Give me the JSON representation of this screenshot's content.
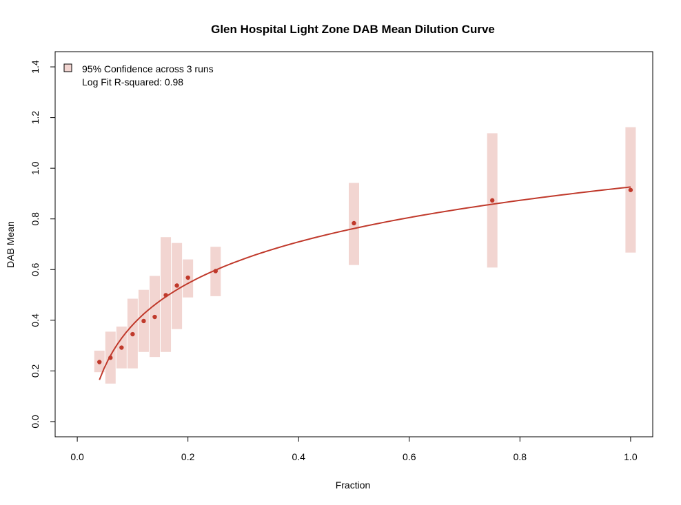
{
  "chart_data": {
    "type": "scatter",
    "title": "Glen Hospital Light Zone DAB Mean Dilution Curve",
    "xlabel": "Fraction",
    "ylabel": "DAB Mean",
    "xlim": [
      -0.04,
      1.04
    ],
    "ylim": [
      -0.06,
      1.46
    ],
    "x_ticks": [
      0.0,
      0.2,
      0.4,
      0.6,
      0.8,
      1.0
    ],
    "x_tick_labels": [
      "0.0",
      "0.2",
      "0.4",
      "0.6",
      "0.8",
      "1.0"
    ],
    "y_ticks": [
      0.0,
      0.2,
      0.4,
      0.6,
      0.8,
      1.0,
      1.2,
      1.4
    ],
    "y_tick_labels": [
      "0.0",
      "0.2",
      "0.4",
      "0.6",
      "0.8",
      "1.0",
      "1.2",
      "1.4"
    ],
    "points": [
      {
        "x": 0.04,
        "y": 0.235,
        "lo": 0.195,
        "hi": 0.28
      },
      {
        "x": 0.06,
        "y": 0.252,
        "lo": 0.15,
        "hi": 0.355
      },
      {
        "x": 0.08,
        "y": 0.292,
        "lo": 0.21,
        "hi": 0.375
      },
      {
        "x": 0.1,
        "y": 0.345,
        "lo": 0.21,
        "hi": 0.485
      },
      {
        "x": 0.12,
        "y": 0.397,
        "lo": 0.275,
        "hi": 0.52
      },
      {
        "x": 0.14,
        "y": 0.413,
        "lo": 0.255,
        "hi": 0.575
      },
      {
        "x": 0.16,
        "y": 0.499,
        "lo": 0.275,
        "hi": 0.728
      },
      {
        "x": 0.18,
        "y": 0.537,
        "lo": 0.365,
        "hi": 0.705
      },
      {
        "x": 0.2,
        "y": 0.568,
        "lo": 0.49,
        "hi": 0.64
      },
      {
        "x": 0.25,
        "y": 0.594,
        "lo": 0.495,
        "hi": 0.69
      },
      {
        "x": 0.5,
        "y": 0.783,
        "lo": 0.618,
        "hi": 0.942
      },
      {
        "x": 0.75,
        "y": 0.873,
        "lo": 0.608,
        "hi": 1.138
      },
      {
        "x": 1.0,
        "y": 0.914,
        "lo": 0.667,
        "hi": 1.162
      }
    ],
    "fit": {
      "type": "log",
      "a": 0.926,
      "b": 0.2365,
      "x_from": 0.04,
      "x_to": 1.0
    },
    "legend": {
      "placement": "top-left",
      "entries": [
        "95% Confidence across 3 runs",
        "Log Fit R-squared: 0.98"
      ]
    },
    "colors": {
      "band": "#f2d5d1",
      "points": "#c0392b",
      "line": "#c0392b",
      "axes": "#000000"
    },
    "grid": false
  }
}
